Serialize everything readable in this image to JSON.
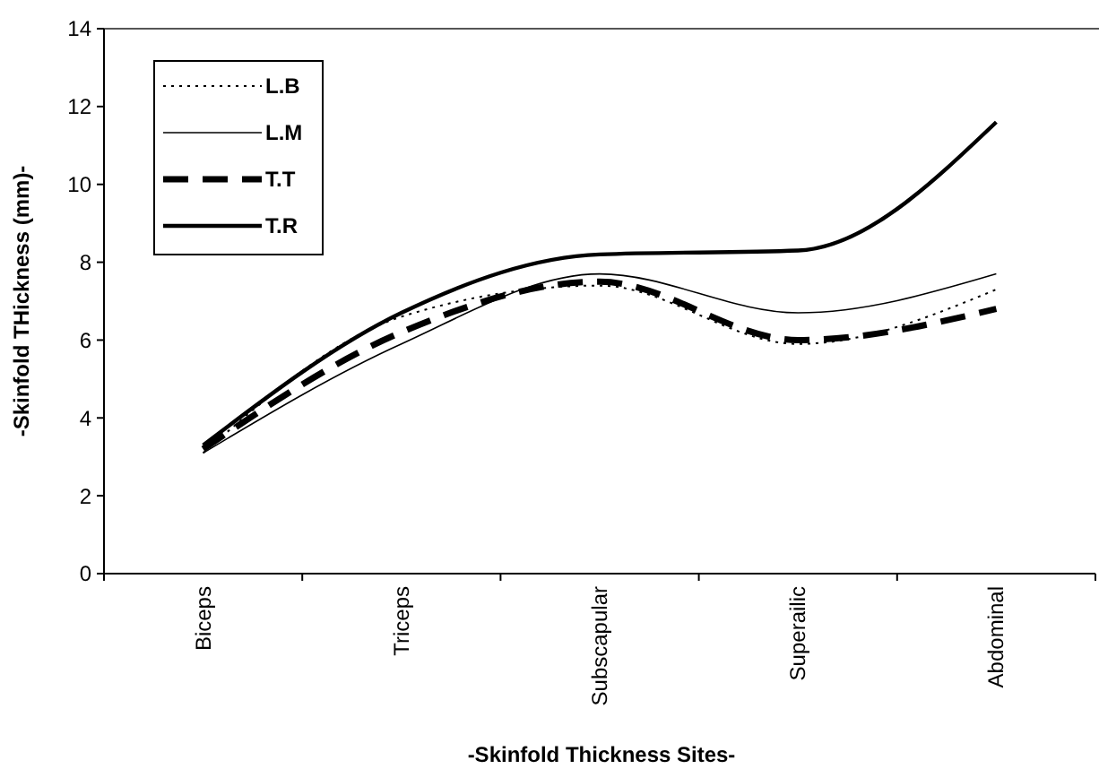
{
  "chart_data": {
    "type": "line",
    "xlabel": "-Skinfold Thickness Sites-",
    "ylabel": "-Skinfold THickness (mm)-",
    "categories": [
      "Biceps",
      "Triceps",
      "Subscapular",
      "Superailic",
      "Abdominal"
    ],
    "series": [
      {
        "name": "L.B",
        "color": "#000000",
        "line_style": "dotted",
        "values": [
          3.1,
          6.6,
          7.4,
          5.9,
          7.3
        ]
      },
      {
        "name": "L.M",
        "color": "#000000",
        "line_style": "solid",
        "values": [
          3.1,
          5.9,
          7.7,
          6.7,
          7.7
        ]
      },
      {
        "name": "T.T",
        "color": "#000000",
        "line_style": "dashed",
        "values": [
          3.2,
          6.2,
          7.5,
          6.0,
          6.8
        ]
      },
      {
        "name": "T.R",
        "color": "#000000",
        "line_style": "solid",
        "values": [
          3.3,
          6.7,
          8.2,
          8.3,
          11.6
        ]
      }
    ],
    "ylim": [
      0,
      14
    ],
    "yticks": [
      0,
      2,
      4,
      6,
      8,
      10,
      12,
      14
    ],
    "legend": "top left",
    "marker": "none",
    "grid": false
  }
}
